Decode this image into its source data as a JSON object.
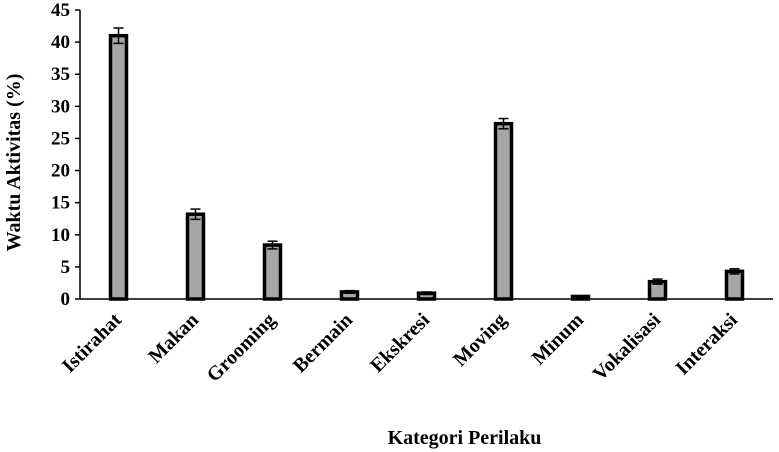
{
  "chart_data": {
    "type": "bar",
    "title": "",
    "xlabel": "Kategori Perilaku",
    "ylabel": "Waktu Aktivitas (%)",
    "categories": [
      "Istirahat",
      "Makan",
      "Grooming",
      "Bermain",
      "Ekskresi",
      "Moving",
      "Minum",
      "Vokalisasi",
      "Interaksi"
    ],
    "values": [
      41.0,
      13.2,
      8.4,
      1.1,
      0.9,
      27.3,
      0.4,
      2.7,
      4.3
    ],
    "error": [
      1.2,
      0.8,
      0.6,
      0.2,
      0.2,
      0.8,
      0.1,
      0.4,
      0.4
    ],
    "ylim": [
      0,
      45
    ],
    "yticks": [
      0,
      5,
      10,
      15,
      20,
      25,
      30,
      35,
      40,
      45
    ],
    "grid": false,
    "legend": "none",
    "colors": {
      "bar_fill": "#a6a6a6",
      "bar_stroke": "#000000",
      "axis": "#000000"
    }
  }
}
